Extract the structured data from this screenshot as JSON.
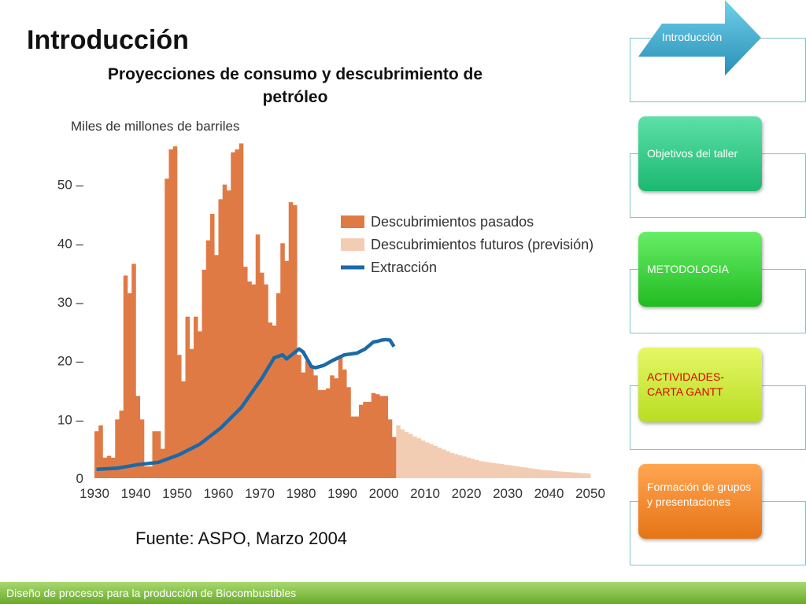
{
  "slide": {
    "title": "Introducción",
    "subtitle": "Proyecciones de consumo y descubrimiento de petróleo",
    "source": "Fuente: ASPO, Marzo 2004",
    "footer": "Diseño de procesos para la producción de Biocombustibles"
  },
  "nav": {
    "items": [
      {
        "label": "Introducción",
        "color": "#3aa6c4",
        "active": true
      },
      {
        "label": "Objetivos del taller",
        "color": "#2ecc8a"
      },
      {
        "label": "METODOLOGIA",
        "color": "#33cc33"
      },
      {
        "label": "ACTIVIDADES-\nCARTA GANTT",
        "color": "#ccee33",
        "text_color": "#dd0000"
      },
      {
        "label": "Formación de grupos y presentaciones",
        "color": "#f28a2a"
      }
    ]
  },
  "chart_data": {
    "type": "bar",
    "ylabel": "Miles de millones de barriles",
    "ylim": [
      0,
      60
    ],
    "yticks": [
      0,
      10,
      20,
      30,
      40,
      50
    ],
    "xlim": [
      1930,
      2050
    ],
    "xticks": [
      1930,
      1940,
      1950,
      1960,
      1970,
      1980,
      1990,
      2000,
      2010,
      2020,
      2030,
      2040,
      2050
    ],
    "legend_position": "center-right",
    "colors": {
      "past": "#e07a45",
      "future": "#f2cdb3",
      "extraction": "#1b6aa5"
    },
    "series": [
      {
        "name": "Descubrimientos pasados",
        "x": [
          1930,
          1931,
          1932,
          1933,
          1934,
          1935,
          1936,
          1937,
          1938,
          1939,
          1940,
          1941,
          1942,
          1943,
          1944,
          1945,
          1946,
          1947,
          1948,
          1949,
          1950,
          1951,
          1952,
          1953,
          1954,
          1955,
          1956,
          1957,
          1958,
          1959,
          1960,
          1961,
          1962,
          1963,
          1964,
          1965,
          1966,
          1967,
          1968,
          1969,
          1970,
          1971,
          1972,
          1973,
          1974,
          1975,
          1976,
          1977,
          1978,
          1979,
          1980,
          1981,
          1982,
          1983,
          1984,
          1985,
          1986,
          1987,
          1988,
          1989,
          1990,
          1991,
          1992,
          1993,
          1994,
          1995,
          1996,
          1997,
          1998,
          1999,
          2000,
          2001,
          2002
        ],
        "values": [
          8,
          9,
          3.5,
          3.8,
          3.5,
          10,
          11.5,
          34.5,
          31.5,
          36.5,
          14,
          10,
          2,
          2,
          8,
          8,
          5,
          51,
          56,
          56.5,
          21,
          16.5,
          27.5,
          22,
          27.5,
          25,
          35.5,
          40.5,
          45,
          38,
          47.5,
          50,
          49,
          55.5,
          56,
          57,
          36,
          33.5,
          33,
          41.5,
          35,
          33,
          26.5,
          26,
          31.5,
          40,
          37,
          47,
          46.5,
          21,
          18,
          20,
          19,
          17.5,
          15,
          15,
          15.3,
          17.5,
          17,
          20.5,
          18.5,
          15.5,
          10.5,
          10.5,
          12.5,
          13,
          13,
          14.5,
          14.3,
          14,
          14,
          10,
          7
        ]
      },
      {
        "name": "Descubrimientos futuros (previsión)",
        "x": [
          2003,
          2004,
          2005,
          2006,
          2007,
          2008,
          2009,
          2010,
          2011,
          2012,
          2013,
          2014,
          2015,
          2016,
          2017,
          2018,
          2019,
          2020,
          2021,
          2022,
          2023,
          2024,
          2025,
          2026,
          2027,
          2028,
          2029,
          2030,
          2031,
          2032,
          2033,
          2034,
          2035,
          2036,
          2037,
          2038,
          2039,
          2040,
          2041,
          2042,
          2043,
          2044,
          2045,
          2046,
          2047,
          2048,
          2049
        ],
        "values": [
          9,
          8.3,
          7.9,
          7.5,
          7.1,
          6.8,
          6.4,
          6.1,
          5.8,
          5.5,
          5.2,
          4.9,
          4.6,
          4.3,
          4.1,
          3.9,
          3.7,
          3.5,
          3.3,
          3.1,
          2.9,
          2.8,
          2.7,
          2.6,
          2.5,
          2.4,
          2.3,
          2.2,
          2.1,
          2.0,
          1.9,
          1.8,
          1.7,
          1.6,
          1.5,
          1.4,
          1.35,
          1.3,
          1.2,
          1.15,
          1.1,
          1.05,
          1.0,
          0.95,
          0.9,
          0.85,
          0.8
        ]
      },
      {
        "name": "Extracción",
        "type": "line",
        "x": [
          1930,
          1935,
          1940,
          1945,
          1950,
          1955,
          1960,
          1965,
          1970,
          1973,
          1975,
          1976,
          1979,
          1980,
          1982,
          1983,
          1985,
          1987,
          1990,
          1993,
          1995,
          1997,
          1998,
          1999,
          2000,
          2001,
          2002
        ],
        "values": [
          1.5,
          1.7,
          2.3,
          2.7,
          4,
          5.8,
          8.5,
          12,
          17,
          20.5,
          21,
          20.3,
          22,
          21.5,
          19,
          18.8,
          19.2,
          20,
          21,
          21.3,
          22,
          23.2,
          23.3,
          23.5,
          23.6,
          23.5,
          22.4
        ]
      }
    ]
  }
}
